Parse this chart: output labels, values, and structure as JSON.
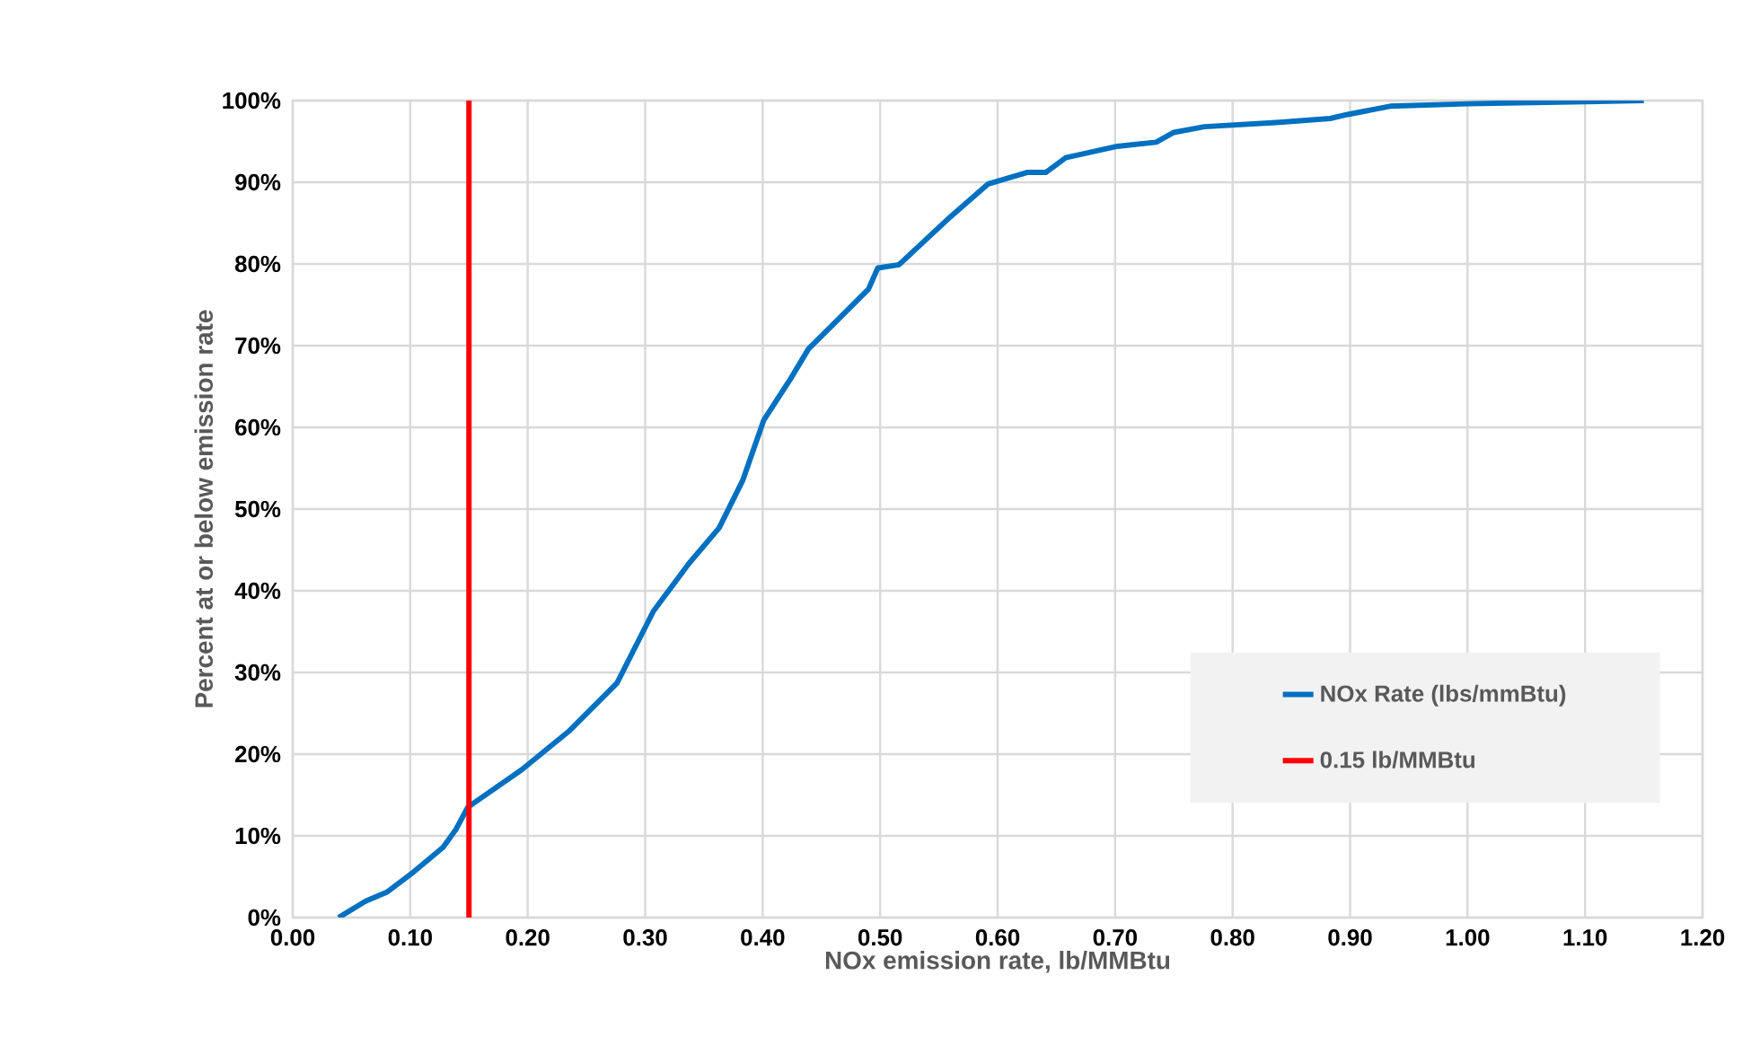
{
  "chart_data": {
    "type": "line",
    "xlabel": "NOx emission rate, lb/MMBtu",
    "ylabel": "Percent at or below emission rate",
    "x": [
      0.039,
      0.062,
      0.08,
      0.103,
      0.128,
      0.139,
      0.149,
      0.195,
      0.235,
      0.276,
      0.307,
      0.337,
      0.363,
      0.383,
      0.401,
      0.424,
      0.439,
      0.46,
      0.49,
      0.498,
      0.516,
      0.557,
      0.592,
      0.625,
      0.641,
      0.658,
      0.702,
      0.735,
      0.75,
      0.776,
      0.837,
      0.883,
      0.898,
      0.934,
      1.0,
      1.15
    ],
    "series": [
      {
        "name": "NOx Rate (lbs/mmBtu)",
        "color": "#0070c0",
        "values": [
          0,
          2.0,
          3.1,
          5.6,
          8.6,
          10.8,
          13.5,
          18.1,
          22.8,
          28.7,
          37.5,
          43.3,
          47.7,
          53.5,
          60.9,
          66.0,
          69.6,
          72.6,
          76.9,
          79.5,
          79.9,
          85.4,
          89.8,
          91.2,
          91.2,
          93.0,
          94.4,
          94.9,
          96.1,
          96.8,
          97.3,
          97.8,
          98.3,
          99.3,
          99.6,
          100
        ]
      },
      {
        "name": "0.15 lb/MMBtu",
        "color": "#ff0000",
        "x": [
          0.15,
          0.15
        ],
        "values": [
          0,
          100
        ]
      }
    ],
    "xlim": [
      0,
      1.2
    ],
    "ylim": [
      0,
      100
    ],
    "xticks": [
      {
        "value": 0,
        "label": "0.00"
      },
      {
        "value": 0.1,
        "label": "0.10"
      },
      {
        "value": 0.2,
        "label": "0.20"
      },
      {
        "value": 0.3,
        "label": "0.30"
      },
      {
        "value": 0.4,
        "label": "0.40"
      },
      {
        "value": 0.5,
        "label": "0.50"
      },
      {
        "value": 0.6,
        "label": "0.60"
      },
      {
        "value": 0.7,
        "label": "0.70"
      },
      {
        "value": 0.8,
        "label": "0.80"
      },
      {
        "value": 0.9,
        "label": "0.90"
      },
      {
        "value": 1.0,
        "label": "1.00"
      },
      {
        "value": 1.1,
        "label": "1.10"
      },
      {
        "value": 1.2,
        "label": "1.20"
      }
    ],
    "yticks": [
      {
        "value": 0,
        "label": "0%"
      },
      {
        "value": 10,
        "label": "10%"
      },
      {
        "value": 20,
        "label": "20%"
      },
      {
        "value": 30,
        "label": "30%"
      },
      {
        "value": 40,
        "label": "40%"
      },
      {
        "value": 50,
        "label": "50%"
      },
      {
        "value": 60,
        "label": "60%"
      },
      {
        "value": 70,
        "label": "70%"
      },
      {
        "value": 80,
        "label": "80%"
      },
      {
        "value": 90,
        "label": "90%"
      },
      {
        "value": 100,
        "label": "100%"
      }
    ],
    "grid": true,
    "legend": "bottom right",
    "marker": "none",
    "line_style": "solid"
  }
}
